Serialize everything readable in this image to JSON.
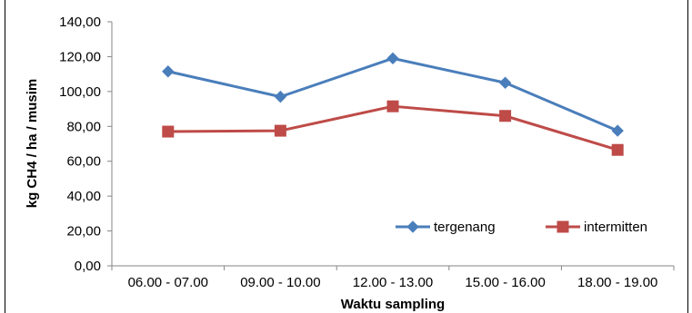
{
  "chart_data": {
    "type": "line",
    "categories": [
      "06.00 - 07.00",
      "09.00 - 10.00",
      "12.00 - 13.00",
      "15.00 - 16.00",
      "18.00 - 19.00"
    ],
    "series": [
      {
        "name": "tergenang",
        "values": [
          111.5,
          97.0,
          119.0,
          105.0,
          77.5
        ],
        "color": "#4a7ebb",
        "marker": "diamond"
      },
      {
        "name": "intermitten",
        "values": [
          77.0,
          77.5,
          91.5,
          86.0,
          66.5
        ],
        "color": "#be4b48",
        "marker": "square"
      }
    ],
    "ylim": [
      0,
      140
    ],
    "yticks": [
      0,
      20,
      40,
      60,
      80,
      100,
      120,
      140
    ],
    "ytick_labels": [
      "0,00",
      "20,00",
      "40,00",
      "60,00",
      "80,00",
      "100,00",
      "120,00",
      "140,00"
    ],
    "xlabel": "Waktu sampling",
    "ylabel": "kg CH4 / ha / musim",
    "grid": false,
    "legend_position": "bottom-right inside plot"
  }
}
